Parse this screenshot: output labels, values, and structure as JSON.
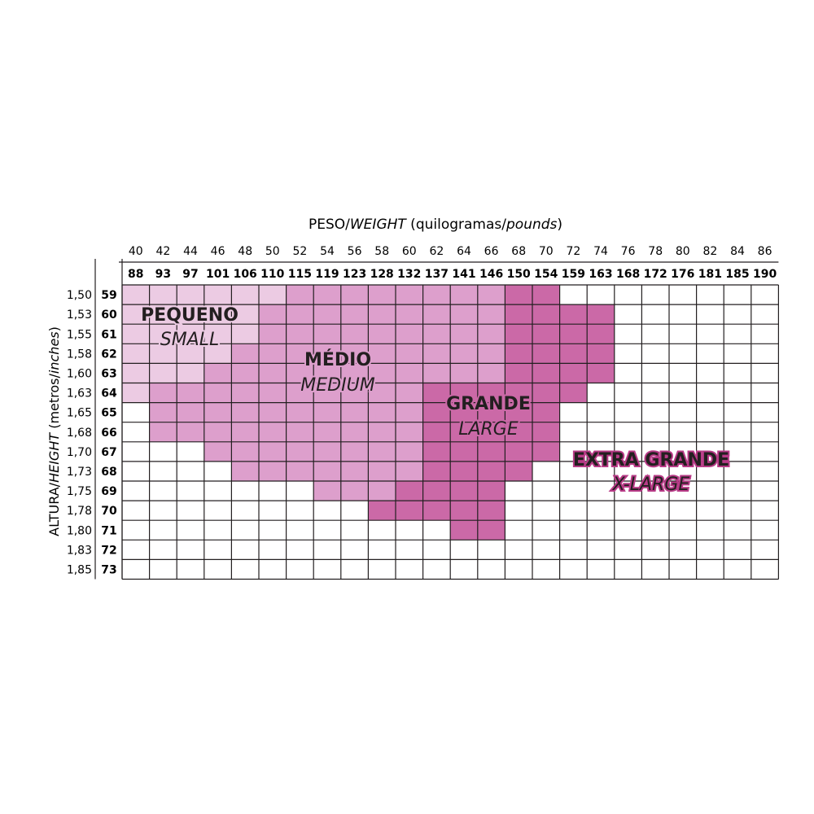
{
  "chart_data": {
    "type": "heatmap",
    "title_prefix": "PESO/",
    "title_italic": "WEIGHT",
    "title_suffix": " (quilogramas/",
    "title_italic2": "pounds",
    "title_close": ")",
    "ylabel_prefix": "ALTURA/",
    "ylabel_italic": "HEIGHT",
    "ylabel_suffix": " (metros/",
    "ylabel_italic2": "inches",
    "ylabel_close": ")",
    "weight_kg": [
      "40",
      "42",
      "44",
      "46",
      "48",
      "50",
      "52",
      "54",
      "56",
      "58",
      "60",
      "62",
      "64",
      "66",
      "68",
      "70",
      "72",
      "74",
      "76",
      "78",
      "80",
      "82",
      "84",
      "86"
    ],
    "weight_lb": [
      "88",
      "93",
      "97",
      "101",
      "106",
      "110",
      "115",
      "119",
      "123",
      "128",
      "132",
      "137",
      "141",
      "146",
      "150",
      "154",
      "159",
      "163",
      "168",
      "172",
      "176",
      "181",
      "185",
      "190"
    ],
    "height_m": [
      "1,50",
      "1,53",
      "1,55",
      "1,58",
      "1,60",
      "1,63",
      "1,65",
      "1,68",
      "1,70",
      "1,73",
      "1,75",
      "1,78",
      "1,80",
      "1,83",
      "1,85"
    ],
    "height_in": [
      "59",
      "60",
      "61",
      "62",
      "63",
      "64",
      "65",
      "66",
      "67",
      "68",
      "69",
      "70",
      "71",
      "72",
      "73"
    ],
    "sizes": [
      {
        "key": "S",
        "name": "PEQUENO",
        "name_en": "SMALL",
        "color": "#eccbe3"
      },
      {
        "key": "M",
        "name": "MÉDIO",
        "name_en": "MEDIUM",
        "color": "#dd9fcc"
      },
      {
        "key": "L",
        "name": "GRANDE",
        "name_en": "LARGE",
        "color": "#cb69a7"
      },
      {
        "key": "XL",
        "name": "EXTRA GRANDE",
        "name_en": "X-LARGE",
        "color": "#b73a86"
      }
    ],
    "grid": [
      "SSSSSSMMMMMMMMLLXXXXXXXX",
      "SSSSSMMMMMMMMMLLLLXXXXXX",
      "SSSSSMMMMMMMMMLLLLLLXXXX",
      "SSSSMMMMMMMMMMLLLLLLLLXX",
      "SSSMMMMMMMMMMMLLLLLLLLXX",
      "SMMMMMMMMMMLLLLLLLLLLLLL",
      "XMMMMMMMMMMLLLLLLLLLLLLL",
      "XMMMMMMMMMMLLLLLLLLLLLLL",
      "XXXMMMMMMMMLLLLLLLLLLLLX",
      "XXXXMMMMMMMLLLLLLLLLLLLX",
      "XXXXXXXMMMLLLLLLLLLLLLXX",
      "XXXXXXXXXLLLLLLLLLLLLXXX",
      "XXXXXXXXXXXLLLLLLLLXXXXX",
      "XXXXXXXXXXXLLLLLLLLXXXXX",
      "XXXXXXXXXXXXXLLLLLLXXXXX"
    ],
    "cell_colors": [
      "SSSSSSMMMMMMMMLLwwwwwwww",
      "SSSSSMMMMMMMMMLLLLwwwwww",
      "SSSSSMMMMMMMMMLLLLXXwwww",
      "SSSSMMMMMMMMMMLLLLXXXwww",
      "SSSMMMMMMMMMMMLLLLXXXXXw",
      "SMMMMMMMMMMLLLLLLXXXXXXX",
      "wMMMMMMMMMMLLLLLXXXXXXXX",
      "wMMMMMMMMMMLLLLLXXXXXXXX",
      "wwwMMMMMMMMLLLLLXXXXXXXw",
      "wwwwMMMMMMMLLLLXXXXXXXXw",
      "wwwwwwwMMMLLLLXXXXXXXXww",
      "wwwwwwwwwLLLLLXXXXXXXwww",
      "wwwwwwwwwwwwLLXXXXXXwwww",
      "wwwwwwwwwwwwXXXXXXXXwwww",
      "wwwwwwwwwwwwwwXXXXXXwwww"
    ]
  }
}
